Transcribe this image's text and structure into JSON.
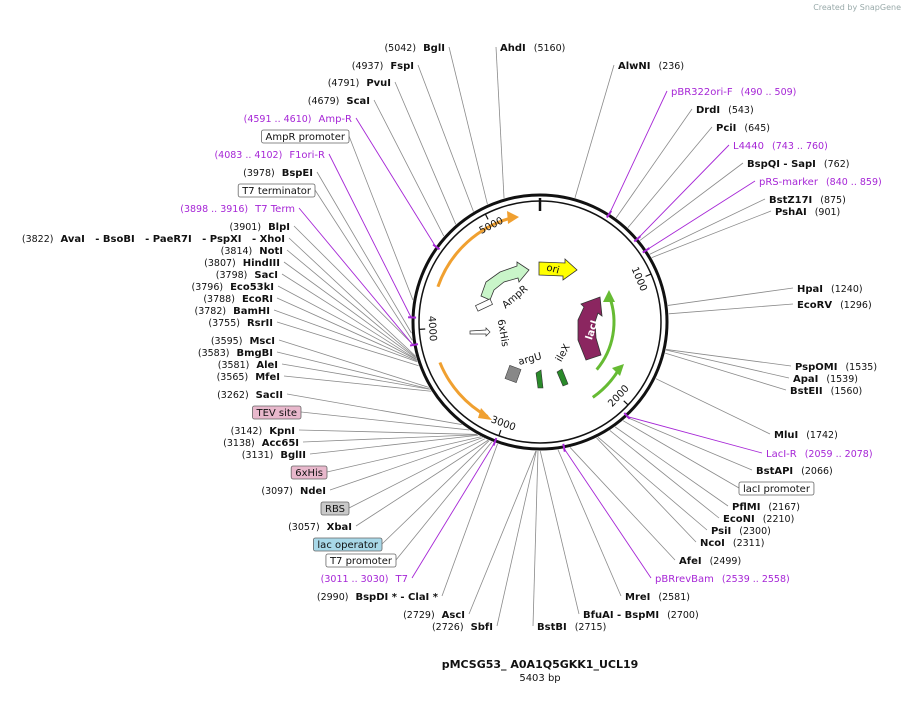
{
  "header": {
    "watermark": "Created by SnapGene"
  },
  "title": "pMCSG53_ A0A1Q5GKK1_UCL19",
  "length": "5403 bp",
  "ring_ticks": [
    "1000",
    "2000",
    "3000",
    "4000",
    "5000"
  ],
  "features": [
    "AmpR",
    "ori",
    "6xHis",
    "argU",
    "ileX",
    "lacI"
  ],
  "labels": [
    {
      "name": "AhdI",
      "position": "(5160)"
    },
    {
      "name": "AlwNI",
      "position": "(236)"
    },
    {
      "name": "pBR322ori-F",
      "range": "(490 .. 509)"
    },
    {
      "name": "DrdI",
      "position": "(543)"
    },
    {
      "name": "PciI",
      "position": "(645)"
    },
    {
      "name": "L4440",
      "range": "(743 .. 760)"
    },
    {
      "name": "BspQI - SapI",
      "position": "(762)"
    },
    {
      "name": "pRS-marker",
      "range": "(840 .. 859)"
    },
    {
      "name": "BstZ17I",
      "position": "(875)"
    },
    {
      "name": "PshAI",
      "position": "(901)"
    },
    {
      "name": "HpaI",
      "position": "(1240)"
    },
    {
      "name": "EcoRV",
      "position": "(1296)"
    },
    {
      "name": "PspOMI",
      "position": "(1535)"
    },
    {
      "name": "ApaI",
      "position": "(1539)"
    },
    {
      "name": "BstEII",
      "position": "(1560)"
    },
    {
      "name": "MluI",
      "position": "(1742)"
    },
    {
      "name": "LacI-R",
      "range": "(2059 .. 2078)"
    },
    {
      "name": "BstAPI",
      "position": "(2066)"
    },
    {
      "box": "lacI promoter",
      "color": "#ffffff"
    },
    {
      "name": "PflMI",
      "position": "(2167)"
    },
    {
      "name": "EcoNI",
      "position": "(2210)"
    },
    {
      "name": "PsiI",
      "position": "(2300)"
    },
    {
      "name": "NcoI",
      "position": "(2311)"
    },
    {
      "name": "AfeI",
      "position": "(2499)"
    },
    {
      "name": "pBRrevBam",
      "range": "(2539 .. 2558)"
    },
    {
      "name": "MreI",
      "position": "(2581)"
    },
    {
      "name": "BfuAI - BspMI",
      "position": "(2700)"
    },
    {
      "name": "BstBI",
      "position": "(2715)"
    },
    {
      "name": "SbfI",
      "position": "(2726)"
    },
    {
      "name": "AscI",
      "position": "(2729)"
    },
    {
      "name": "BspDI * - ClaI *",
      "position": "(2990)"
    },
    {
      "name": "T7",
      "range": "(3011 .. 3030)"
    },
    {
      "box": "T7 promoter",
      "color": "#ffffff"
    },
    {
      "box": "lac operator",
      "color": "#a8d8e8"
    },
    {
      "name": "XbaI",
      "position": "(3057)"
    },
    {
      "box": "RBS",
      "color": "#c8c8c8"
    },
    {
      "name": "NdeI",
      "position": "(3097)"
    },
    {
      "box": "6xHis",
      "color": "#e8b8cc"
    },
    {
      "name": "BglII",
      "position": "(3131)"
    },
    {
      "name": "Acc65I",
      "position": "(3138)"
    },
    {
      "name": "KpnI",
      "position": "(3142)"
    },
    {
      "box": "TEV site",
      "color": "#e8b8cc"
    },
    {
      "name": "SacII",
      "position": "(3262)"
    },
    {
      "name": "MfeI",
      "position": "(3565)"
    },
    {
      "name": "AleI",
      "position": "(3581)"
    },
    {
      "name": "BmgBI",
      "position": "(3583)"
    },
    {
      "name": "MscI",
      "position": "(3595)"
    },
    {
      "name": "RsrII",
      "position": "(3755)"
    },
    {
      "name": "BamHI",
      "position": "(3782)"
    },
    {
      "name": "EcoRI",
      "position": "(3788)"
    },
    {
      "name": "Eco53kI",
      "position": "(3796)"
    },
    {
      "name": "SacI",
      "position": "(3798)"
    },
    {
      "name": "HindIII",
      "position": "(3807)"
    },
    {
      "name": "NotI",
      "position": "(3814)"
    },
    {
      "name": "AvaI   - BsoBI   - PaeR7I   - PspXI   - XhoI",
      "position": "(3822)"
    },
    {
      "name": "BlpI",
      "position": "(3901)"
    },
    {
      "name": "T7 Term",
      "range": "(3898 .. 3916)"
    },
    {
      "box": "T7 terminator",
      "color": "#ffffff"
    },
    {
      "name": "BspEI",
      "position": "(3978)"
    },
    {
      "name": "F1ori-R",
      "range": "(4083 .. 4102)"
    },
    {
      "box": "AmpR promoter",
      "color": "#ffffff"
    },
    {
      "name": "Amp-R",
      "range": "(4591 .. 4610)"
    },
    {
      "name": "ScaI",
      "position": "(4679)"
    },
    {
      "name": "PvuI",
      "position": "(4791)"
    },
    {
      "name": "FspI",
      "position": "(4937)"
    },
    {
      "name": "BglI",
      "position": "(5042)"
    }
  ]
}
